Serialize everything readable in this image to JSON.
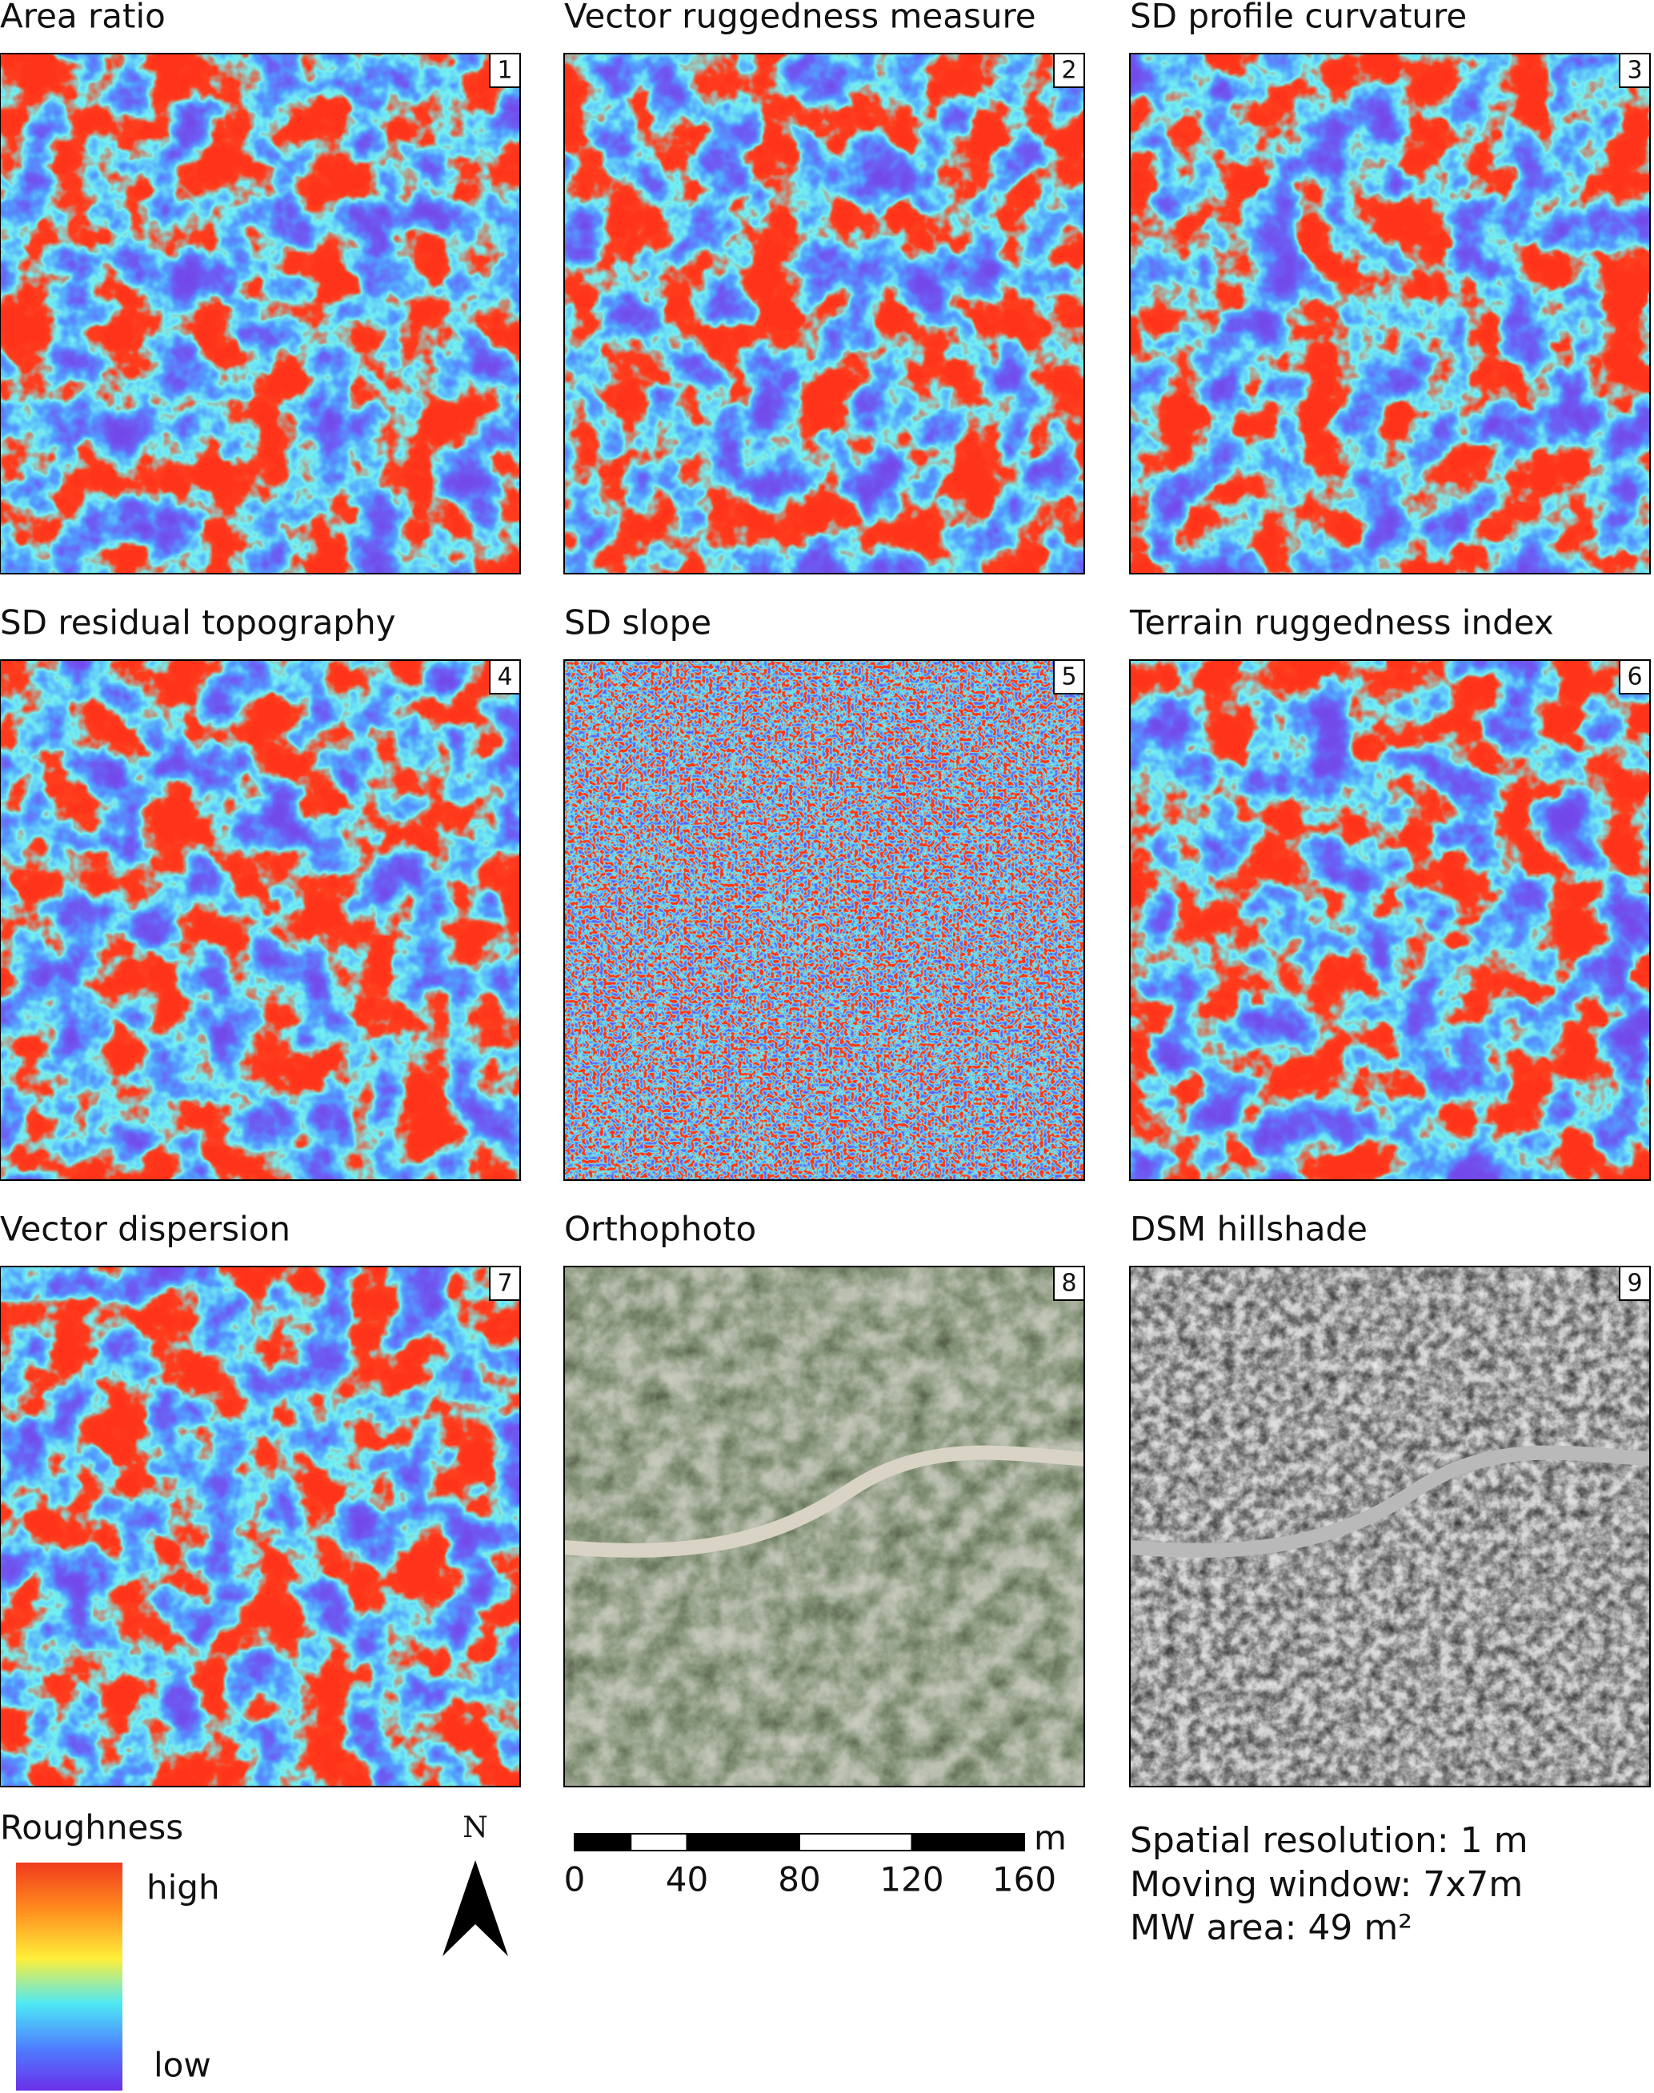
{
  "panels": [
    {
      "title": "Area ratio",
      "number": 1
    },
    {
      "title": "Vector ruggedness measure",
      "number": 2
    },
    {
      "title": "SD profile curvature",
      "number": 3
    },
    {
      "title": "SD residual topography",
      "number": 4
    },
    {
      "title": "SD slope",
      "number": 5
    },
    {
      "title": "Terrain ruggedness index",
      "number": 6
    },
    {
      "title": "Vector dispersion",
      "number": 7
    },
    {
      "title": "Orthophoto",
      "number": 8
    },
    {
      "title": "DSM hillshade",
      "number": 9
    }
  ],
  "legend": {
    "title": "Roughness",
    "high": "high",
    "low": "low"
  },
  "north_arrow": {
    "label": "N"
  },
  "scale_bar": {
    "ticks": [
      0,
      40,
      80,
      120,
      160
    ],
    "unit": "m"
  },
  "notes": [
    "Spatial resolution: 1 m",
    "Moving window: 7x7m",
    "MW area: 49 m²"
  ]
}
